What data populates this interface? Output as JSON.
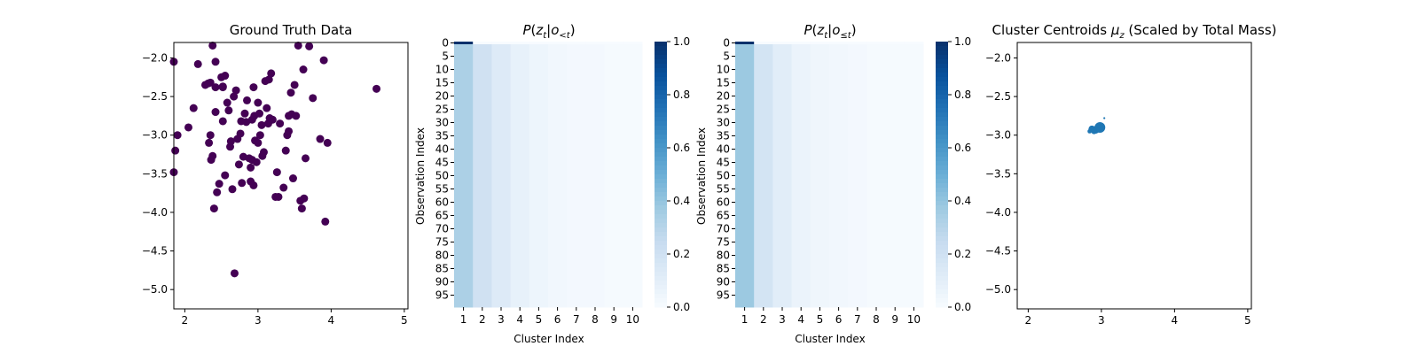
{
  "chart_data": [
    {
      "type": "scatter",
      "title": "Ground Truth Data",
      "xlabel": "",
      "ylabel": "",
      "xlim": [
        1.85,
        5.05
      ],
      "ylim": [
        -5.25,
        -1.8
      ],
      "xticks": [
        2,
        3,
        4,
        5
      ],
      "yticks": [
        -5.0,
        -4.5,
        -4.0,
        -3.5,
        -3.0,
        -2.5,
        -2.0
      ],
      "ytick_labels": [
        "−5.0",
        "−4.5",
        "−4.0",
        "−3.5",
        "−3.0",
        "−2.5",
        "−2.0"
      ],
      "color": "#440154",
      "points": [
        [
          1.85,
          -2.05
        ],
        [
          1.85,
          -3.48
        ],
        [
          1.87,
          -3.2
        ],
        [
          1.9,
          -3.0
        ],
        [
          2.05,
          -2.9
        ],
        [
          2.12,
          -2.65
        ],
        [
          2.18,
          -2.08
        ],
        [
          2.28,
          -2.35
        ],
        [
          2.32,
          -2.33
        ],
        [
          2.33,
          -3.1
        ],
        [
          2.35,
          -2.32
        ],
        [
          2.35,
          -3.0
        ],
        [
          2.36,
          -3.32
        ],
        [
          2.38,
          -3.27
        ],
        [
          2.38,
          -1.84
        ],
        [
          2.4,
          -3.95
        ],
        [
          2.42,
          -2.7
        ],
        [
          2.42,
          -2.05
        ],
        [
          2.42,
          -2.38
        ],
        [
          2.44,
          -3.74
        ],
        [
          2.47,
          -3.63
        ],
        [
          2.5,
          -2.25
        ],
        [
          2.52,
          -2.38
        ],
        [
          2.52,
          -2.82
        ],
        [
          2.52,
          -2.37
        ],
        [
          2.55,
          -2.23
        ],
        [
          2.55,
          -3.52
        ],
        [
          2.58,
          -2.58
        ],
        [
          2.6,
          -2.68
        ],
        [
          2.62,
          -3.15
        ],
        [
          2.63,
          -3.08
        ],
        [
          2.65,
          -3.7
        ],
        [
          2.67,
          -2.5
        ],
        [
          2.68,
          -4.79
        ],
        [
          2.7,
          -2.42
        ],
        [
          2.72,
          -3.05
        ],
        [
          2.74,
          -3.38
        ],
        [
          2.76,
          -2.98
        ],
        [
          2.77,
          -2.82
        ],
        [
          2.78,
          -3.62
        ],
        [
          2.8,
          -3.28
        ],
        [
          2.82,
          -2.72
        ],
        [
          2.84,
          -2.83
        ],
        [
          2.85,
          -2.55
        ],
        [
          2.88,
          -3.3
        ],
        [
          2.9,
          -3.42
        ],
        [
          2.9,
          -3.6
        ],
        [
          2.92,
          -3.32
        ],
        [
          2.92,
          -2.8
        ],
        [
          2.94,
          -3.65
        ],
        [
          2.94,
          -2.38
        ],
        [
          2.95,
          -2.75
        ],
        [
          2.96,
          -3.07
        ],
        [
          2.98,
          -3.35
        ],
        [
          3.0,
          -3.1
        ],
        [
          3.0,
          -2.58
        ],
        [
          3.02,
          -2.72
        ],
        [
          3.03,
          -3.0
        ],
        [
          3.05,
          -2.87
        ],
        [
          3.06,
          -3.27
        ],
        [
          3.08,
          -3.22
        ],
        [
          3.1,
          -2.3
        ],
        [
          3.12,
          -2.65
        ],
        [
          3.14,
          -2.85
        ],
        [
          3.15,
          -2.28
        ],
        [
          3.16,
          -2.78
        ],
        [
          3.18,
          -2.2
        ],
        [
          3.2,
          -2.8
        ],
        [
          3.24,
          -3.8
        ],
        [
          3.26,
          -3.48
        ],
        [
          3.28,
          -3.8
        ],
        [
          3.3,
          -2.85
        ],
        [
          3.35,
          -3.68
        ],
        [
          3.38,
          -3.2
        ],
        [
          3.4,
          -3.0
        ],
        [
          3.42,
          -2.95
        ],
        [
          3.42,
          -2.75
        ],
        [
          3.45,
          -2.45
        ],
        [
          3.46,
          -2.73
        ],
        [
          3.48,
          -3.56
        ],
        [
          3.5,
          -2.35
        ],
        [
          3.52,
          -2.75
        ],
        [
          3.55,
          -1.84
        ],
        [
          3.58,
          -3.85
        ],
        [
          3.6,
          -3.95
        ],
        [
          3.62,
          -2.15
        ],
        [
          3.63,
          -3.82
        ],
        [
          3.65,
          -3.3
        ],
        [
          3.7,
          -1.85
        ],
        [
          3.75,
          -2.52
        ],
        [
          3.85,
          -3.05
        ],
        [
          3.9,
          -2.03
        ],
        [
          3.92,
          -4.12
        ],
        [
          3.95,
          -3.1
        ],
        [
          4.62,
          -2.4
        ]
      ]
    },
    {
      "type": "heatmap",
      "title": "P(z_t | o_<t)",
      "xlabel": "Cluster Index",
      "ylabel": "Observation Index",
      "x_categories": [
        "1",
        "2",
        "3",
        "4",
        "5",
        "6",
        "7",
        "8",
        "9",
        "10"
      ],
      "ytick_labels": [
        "0",
        "5",
        "10",
        "15",
        "20",
        "25",
        "30",
        "35",
        "40",
        "45",
        "50",
        "55",
        "60",
        "65",
        "70",
        "75",
        "80",
        "85",
        "90",
        "95"
      ],
      "n_rows": 100,
      "first_row": [
        1.0,
        0.0,
        0.0,
        0.0,
        0.0,
        0.0,
        0.0,
        0.0,
        0.0,
        0.0
      ],
      "row_profile": [
        0.33,
        0.2,
        0.13,
        0.08,
        0.05,
        0.03,
        0.02,
        0.02,
        0.01,
        0.01
      ],
      "colorbar": {
        "cmap": "Blues",
        "min": 0.0,
        "max": 1.0,
        "ticks": [
          "0.0",
          "0.2",
          "0.4",
          "0.6",
          "0.8",
          "1.0"
        ]
      }
    },
    {
      "type": "heatmap",
      "title": "P(z_t | o_≤t)",
      "xlabel": "Cluster Index",
      "ylabel": "Observation Index",
      "x_categories": [
        "1",
        "2",
        "3",
        "4",
        "5",
        "6",
        "7",
        "8",
        "9",
        "10"
      ],
      "ytick_labels": [
        "0",
        "5",
        "10",
        "15",
        "20",
        "25",
        "30",
        "35",
        "40",
        "45",
        "50",
        "55",
        "60",
        "65",
        "70",
        "75",
        "80",
        "85",
        "90",
        "95"
      ],
      "n_rows": 100,
      "first_row": [
        1.0,
        0.0,
        0.0,
        0.0,
        0.0,
        0.0,
        0.0,
        0.0,
        0.0,
        0.0
      ],
      "row_profile": [
        0.38,
        0.18,
        0.11,
        0.06,
        0.04,
        0.03,
        0.02,
        0.01,
        0.01,
        0.01
      ],
      "colorbar": {
        "cmap": "Blues",
        "min": 0.0,
        "max": 1.0,
        "ticks": [
          "0.0",
          "0.2",
          "0.4",
          "0.6",
          "0.8",
          "1.0"
        ]
      }
    },
    {
      "type": "scatter",
      "title": "Cluster Centroids μ_z (Scaled by Total Mass)",
      "xlabel": "",
      "ylabel": "",
      "xlim": [
        1.85,
        5.05
      ],
      "ylim": [
        -5.25,
        -1.8
      ],
      "xticks": [
        2,
        3,
        4,
        5
      ],
      "yticks": [
        -5.0,
        -4.5,
        -4.0,
        -3.5,
        -3.0,
        -2.5,
        -2.0
      ],
      "ytick_labels": [
        "−5.0",
        "−4.5",
        "−4.0",
        "−3.5",
        "−3.0",
        "−2.5",
        "−2.0"
      ],
      "color": "#1f77b4",
      "points": [
        [
          2.98,
          -2.9
        ],
        [
          2.92,
          -2.93
        ],
        [
          2.87,
          -2.92
        ],
        [
          2.9,
          -2.95
        ],
        [
          2.84,
          -2.95
        ],
        [
          2.95,
          -2.88
        ],
        [
          3.04,
          -2.78
        ]
      ],
      "masses": [
        0.3,
        0.16,
        0.12,
        0.09,
        0.05,
        0.04,
        0.01
      ]
    }
  ]
}
